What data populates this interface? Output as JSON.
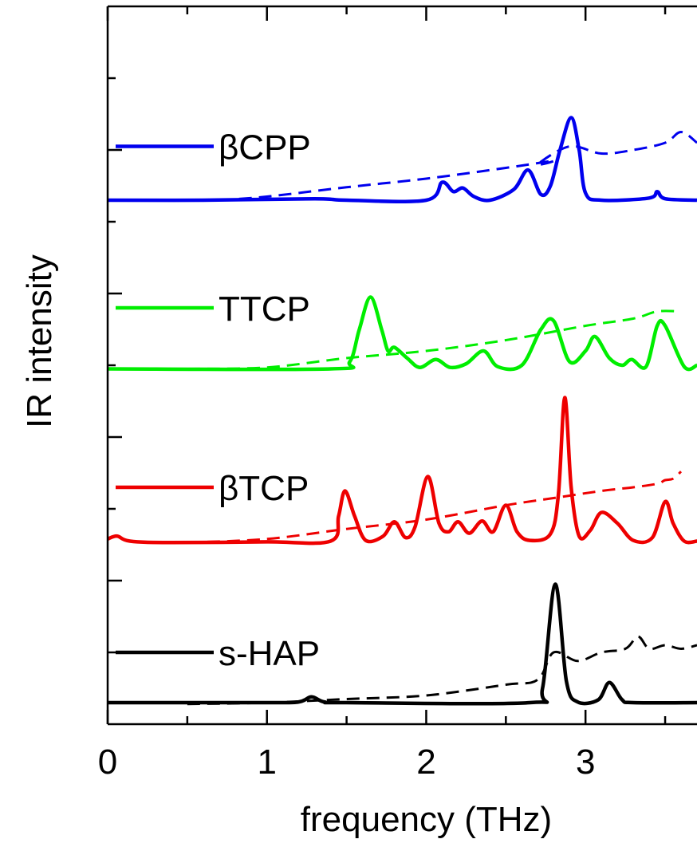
{
  "chart_data": {
    "type": "line",
    "xlabel": "frequency (THz)",
    "ylabel": "IR intensity",
    "xlim": [
      0,
      3.7
    ],
    "ylim": [
      0,
      10
    ],
    "x_ticks": [
      0,
      1,
      2,
      3
    ],
    "x_minor_ticks": [
      0.5,
      1.5,
      2.5,
      3.5
    ],
    "grid": false,
    "legend": "inside-left, one entry per stacked curve",
    "series": [
      {
        "name": "βCPP",
        "color": "#0000ee",
        "baseline": 7.3,
        "legend_y": 8.05,
        "solid": [
          [
            0,
            7.3
          ],
          [
            0.6,
            7.3
          ],
          [
            1.3,
            7.32
          ],
          [
            1.5,
            7.3
          ],
          [
            2.0,
            7.3
          ],
          [
            2.1,
            7.55
          ],
          [
            2.17,
            7.42
          ],
          [
            2.23,
            7.47
          ],
          [
            2.3,
            7.35
          ],
          [
            2.4,
            7.3
          ],
          [
            2.55,
            7.45
          ],
          [
            2.64,
            7.72
          ],
          [
            2.72,
            7.38
          ],
          [
            2.78,
            7.5
          ],
          [
            2.84,
            8.0
          ],
          [
            2.91,
            8.45
          ],
          [
            2.96,
            8.0
          ],
          [
            3.0,
            7.4
          ],
          [
            3.1,
            7.3
          ],
          [
            3.4,
            7.33
          ],
          [
            3.45,
            7.42
          ],
          [
            3.5,
            7.32
          ],
          [
            3.7,
            7.3
          ]
        ],
        "dashed": [
          [
            0.7,
            7.3
          ],
          [
            1.0,
            7.35
          ],
          [
            1.5,
            7.48
          ],
          [
            2.0,
            7.6
          ],
          [
            2.5,
            7.75
          ],
          [
            2.8,
            7.85
          ],
          [
            2.7,
            7.8
          ],
          [
            2.9,
            8.05
          ],
          [
            3.1,
            7.95
          ],
          [
            3.3,
            8.0
          ],
          [
            3.5,
            8.1
          ],
          [
            3.6,
            8.25
          ],
          [
            3.7,
            8.1
          ]
        ]
      },
      {
        "name": "TTCP",
        "color": "#00ee00",
        "baseline": 4.95,
        "legend_y": 5.8,
        "solid": [
          [
            0,
            4.95
          ],
          [
            1.4,
            4.95
          ],
          [
            1.52,
            5.05
          ],
          [
            1.58,
            5.5
          ],
          [
            1.65,
            5.95
          ],
          [
            1.72,
            5.5
          ],
          [
            1.76,
            5.2
          ],
          [
            1.8,
            5.25
          ],
          [
            1.88,
            5.1
          ],
          [
            1.96,
            4.97
          ],
          [
            2.06,
            5.08
          ],
          [
            2.15,
            4.97
          ],
          [
            2.25,
            5.02
          ],
          [
            2.36,
            5.2
          ],
          [
            2.45,
            4.98
          ],
          [
            2.6,
            5.0
          ],
          [
            2.72,
            5.5
          ],
          [
            2.8,
            5.62
          ],
          [
            2.9,
            5.05
          ],
          [
            3.0,
            5.2
          ],
          [
            3.06,
            5.4
          ],
          [
            3.15,
            5.1
          ],
          [
            3.23,
            5.0
          ],
          [
            3.29,
            5.08
          ],
          [
            3.38,
            4.98
          ],
          [
            3.45,
            5.55
          ],
          [
            3.5,
            5.55
          ],
          [
            3.62,
            4.98
          ],
          [
            3.7,
            5.0
          ]
        ],
        "dashed": [
          [
            0.5,
            4.95
          ],
          [
            1.0,
            4.97
          ],
          [
            1.5,
            5.1
          ],
          [
            2.0,
            5.2
          ],
          [
            2.5,
            5.35
          ],
          [
            3.0,
            5.55
          ],
          [
            3.3,
            5.65
          ],
          [
            3.45,
            5.75
          ],
          [
            3.6,
            5.75
          ]
        ]
      },
      {
        "name": "βTCP",
        "color": "#ee0000",
        "baseline": 2.55,
        "legend_y": 3.3,
        "solid": [
          [
            0,
            2.58
          ],
          [
            0.06,
            2.62
          ],
          [
            0.14,
            2.55
          ],
          [
            0.4,
            2.53
          ],
          [
            1.0,
            2.54
          ],
          [
            1.4,
            2.55
          ],
          [
            1.45,
            2.9
          ],
          [
            1.49,
            3.25
          ],
          [
            1.55,
            2.9
          ],
          [
            1.62,
            2.56
          ],
          [
            1.73,
            2.62
          ],
          [
            1.8,
            2.82
          ],
          [
            1.87,
            2.6
          ],
          [
            1.93,
            2.75
          ],
          [
            2.01,
            3.45
          ],
          [
            2.08,
            2.8
          ],
          [
            2.14,
            2.68
          ],
          [
            2.2,
            2.82
          ],
          [
            2.27,
            2.66
          ],
          [
            2.35,
            2.83
          ],
          [
            2.42,
            2.68
          ],
          [
            2.5,
            3.05
          ],
          [
            2.57,
            2.68
          ],
          [
            2.65,
            2.56
          ],
          [
            2.78,
            2.65
          ],
          [
            2.83,
            3.2
          ],
          [
            2.87,
            4.55
          ],
          [
            2.91,
            3.3
          ],
          [
            2.96,
            2.62
          ],
          [
            3.03,
            2.7
          ],
          [
            3.1,
            2.95
          ],
          [
            3.2,
            2.8
          ],
          [
            3.3,
            2.56
          ],
          [
            3.42,
            2.6
          ],
          [
            3.5,
            3.1
          ],
          [
            3.55,
            2.8
          ],
          [
            3.62,
            2.55
          ],
          [
            3.7,
            2.55
          ]
        ],
        "dashed": [
          [
            0.5,
            2.53
          ],
          [
            1.0,
            2.58
          ],
          [
            1.5,
            2.72
          ],
          [
            2.0,
            2.85
          ],
          [
            2.5,
            3.05
          ],
          [
            2.8,
            3.15
          ],
          [
            3.1,
            3.25
          ],
          [
            3.3,
            3.3
          ],
          [
            3.45,
            3.35
          ],
          [
            3.5,
            3.4
          ],
          [
            3.55,
            3.42
          ],
          [
            3.6,
            3.52
          ]
        ]
      },
      {
        "name": "s-HAP",
        "color": "#000000",
        "baseline": 0.3,
        "legend_y": 1.0,
        "solid": [
          [
            0,
            0.3
          ],
          [
            1.0,
            0.3
          ],
          [
            1.2,
            0.31
          ],
          [
            1.28,
            0.38
          ],
          [
            1.36,
            0.31
          ],
          [
            1.5,
            0.3
          ],
          [
            2.65,
            0.3
          ],
          [
            2.73,
            0.5
          ],
          [
            2.81,
            1.95
          ],
          [
            2.88,
            0.6
          ],
          [
            2.95,
            0.31
          ],
          [
            3.08,
            0.34
          ],
          [
            3.15,
            0.58
          ],
          [
            3.23,
            0.34
          ],
          [
            3.3,
            0.3
          ],
          [
            3.7,
            0.3
          ]
        ],
        "dashed": [
          [
            0.5,
            0.28
          ],
          [
            1.0,
            0.3
          ],
          [
            1.5,
            0.35
          ],
          [
            2.0,
            0.4
          ],
          [
            2.5,
            0.55
          ],
          [
            2.7,
            0.62
          ],
          [
            2.8,
            1.0
          ],
          [
            2.95,
            0.88
          ],
          [
            3.1,
            1.0
          ],
          [
            3.25,
            1.05
          ],
          [
            3.33,
            1.22
          ],
          [
            3.4,
            1.05
          ],
          [
            3.5,
            1.1
          ],
          [
            3.6,
            1.05
          ],
          [
            3.7,
            1.1
          ]
        ]
      }
    ]
  }
}
